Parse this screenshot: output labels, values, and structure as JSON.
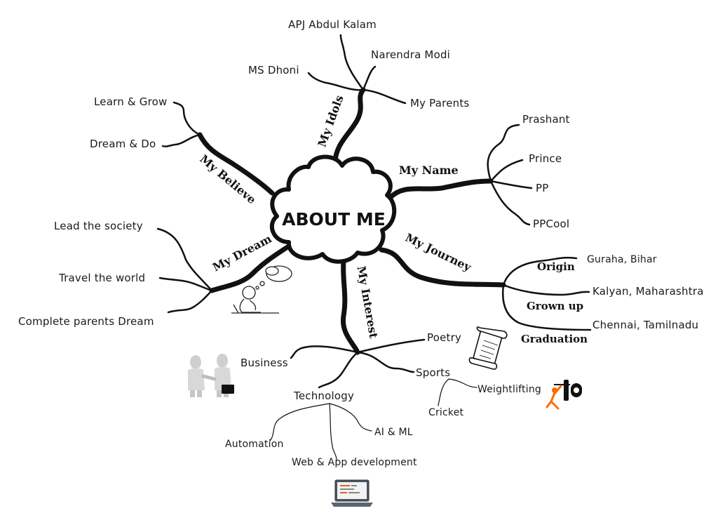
{
  "center": {
    "label": "ABOUT ME"
  },
  "branches": {
    "idols": {
      "label": "My Idols",
      "items": [
        "APJ Abdul Kalam",
        "Narendra Modi",
        "MS Dhoni",
        "My Parents"
      ]
    },
    "name": {
      "label": "My Name",
      "items": [
        "Prashant",
        "Prince",
        "PP",
        "PPCool"
      ]
    },
    "journey": {
      "label": "My Journey",
      "stages": [
        {
          "label": "Origin",
          "place": "Guraha, Bihar"
        },
        {
          "label": "Grown up",
          "place": "Kalyan, Maharashtra"
        },
        {
          "label": "Graduation",
          "place": "Chennai, Tamilnadu"
        }
      ]
    },
    "interest": {
      "label": "My Interest",
      "items": [
        "Poetry",
        "Sports",
        "Business",
        "Technology"
      ],
      "sports": [
        "Weightlifting",
        "Cricket"
      ],
      "technology": [
        "Automation",
        "AI & ML",
        "Web & App development"
      ]
    },
    "dream": {
      "label": "My Dream",
      "items": [
        "Lead the society",
        "Travel the world",
        "Complete parents Dream"
      ]
    },
    "believe": {
      "label": "My Believe",
      "items": [
        "Learn & Grow",
        "Dream & Do"
      ]
    }
  },
  "icons": [
    "thinking-person-icon",
    "handshake-icon",
    "scroll-icon",
    "weightlifter-icon",
    "laptop-icon"
  ],
  "colors": {
    "line": "#111111",
    "background": "#ffffff",
    "accent": "#ff6a00"
  }
}
